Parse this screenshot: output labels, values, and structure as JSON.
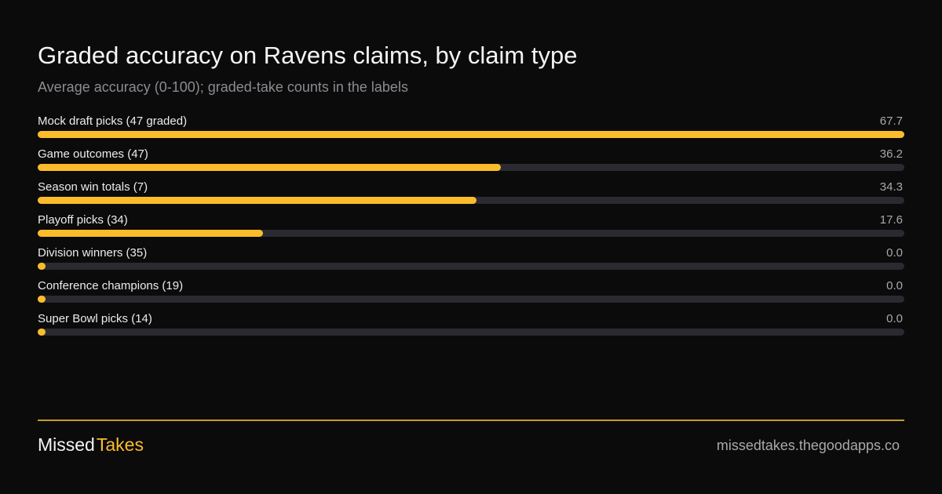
{
  "chart_data": {
    "type": "bar",
    "orientation": "horizontal",
    "title": "Graded accuracy on Ravens claims, by claim type",
    "subtitle": "Average accuracy (0-100); graded-take counts in the labels",
    "categories": [
      "Mock draft picks (47 graded)",
      "Game outcomes (47)",
      "Season win totals (7)",
      "Playoff picks (34)",
      "Division winners (35)",
      "Conference champions (19)",
      "Super Bowl picks (14)"
    ],
    "values": [
      67.7,
      36.2,
      34.3,
      17.6,
      0.0,
      0.0,
      0.0
    ],
    "value_labels": [
      "67.7",
      "36.2",
      "34.3",
      "17.6",
      "0.0",
      "0.0",
      "0.0"
    ],
    "xlim": [
      0,
      67.7
    ],
    "grid": false,
    "colors": {
      "bar": "#fbbc2c",
      "track": "#2a2a30",
      "background": "#0b0b0b",
      "accent": "#fbbc2c"
    }
  },
  "footer": {
    "brand_primary": "Missed",
    "brand_accent": "Takes",
    "site": "missedtakes.thegoodapps.co"
  }
}
